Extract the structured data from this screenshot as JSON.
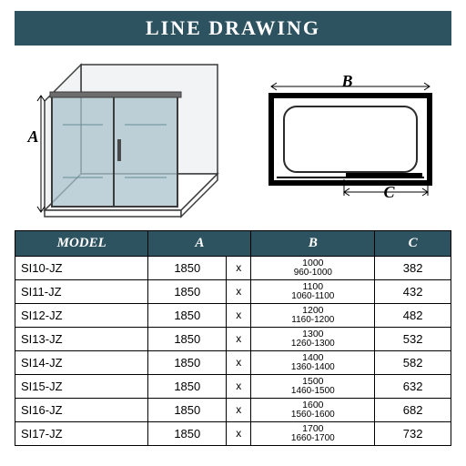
{
  "banner": {
    "title": "LINE DRAWING"
  },
  "colors": {
    "header_bg": "#2e5360",
    "header_text": "#ffffff",
    "border": "#000000",
    "page_bg": "#ffffff"
  },
  "dimension_labels": {
    "A": "A",
    "B": "B",
    "C": "C"
  },
  "left_diagram": {
    "type": "isometric-enclosure",
    "panel_fill": "#a9c3cc",
    "frame_stroke": "#3b3b3b",
    "back_fill": "#f1f3f4"
  },
  "right_diagram": {
    "type": "plan-rectangle",
    "outer_stroke": "#000000",
    "inner_stroke": "#2b2b2b",
    "arrow_stroke": "#000000"
  },
  "table": {
    "headers": [
      "MODEL",
      "A",
      "B",
      "C"
    ],
    "rows": [
      {
        "model": "SI10-JZ",
        "a": "1850",
        "b_main": "1000",
        "b_range": "960-1000",
        "c": "382"
      },
      {
        "model": "SI11-JZ",
        "a": "1850",
        "b_main": "1100",
        "b_range": "1060-1100",
        "c": "432"
      },
      {
        "model": "SI12-JZ",
        "a": "1850",
        "b_main": "1200",
        "b_range": "1160-1200",
        "c": "482"
      },
      {
        "model": "SI13-JZ",
        "a": "1850",
        "b_main": "1300",
        "b_range": "1260-1300",
        "c": "532"
      },
      {
        "model": "SI14-JZ",
        "a": "1850",
        "b_main": "1400",
        "b_range": "1360-1400",
        "c": "582"
      },
      {
        "model": "SI15-JZ",
        "a": "1850",
        "b_main": "1500",
        "b_range": "1460-1500",
        "c": "632"
      },
      {
        "model": "SI16-JZ",
        "a": "1850",
        "b_main": "1600",
        "b_range": "1560-1600",
        "c": "682"
      },
      {
        "model": "SI17-JZ",
        "a": "1850",
        "b_main": "1700",
        "b_range": "1660-1700",
        "c": "732"
      }
    ],
    "x_symbol": "x"
  }
}
